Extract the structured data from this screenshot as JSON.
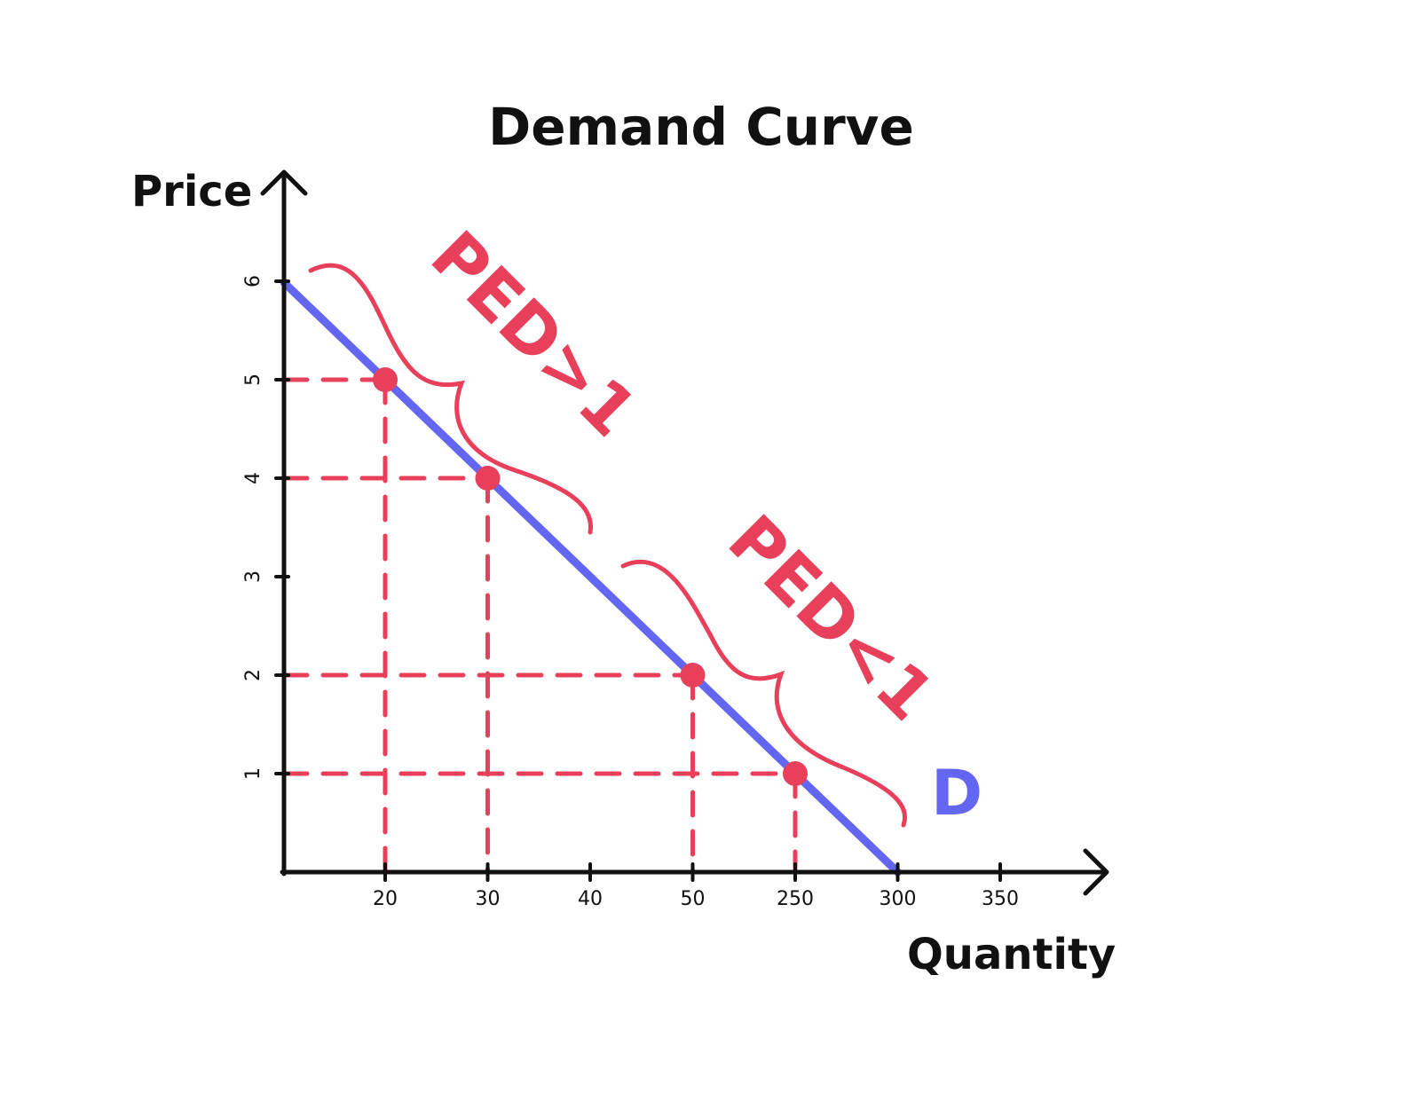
{
  "colors": {
    "demand": "#6366f1",
    "guides": "#e83f5b",
    "axis": "#111111",
    "text": "#111111"
  },
  "chart_data": {
    "type": "line",
    "title": "Demand Curve",
    "xlabel": "Quantity",
    "ylabel": "Price",
    "x_ticks": [
      "20",
      "30",
      "40",
      "50",
      "250",
      "300",
      "350"
    ],
    "y_ticks": [
      "1",
      "2",
      "3",
      "4",
      "5",
      "6"
    ],
    "x_axis_scale": "categorical (evenly spaced tick labels)",
    "series": [
      {
        "name": "D",
        "points": [
          {
            "x": "20",
            "y": 5
          },
          {
            "x": "30",
            "y": 4
          },
          {
            "x": "50",
            "y": 2
          },
          {
            "x": "250",
            "y": 1
          }
        ]
      }
    ],
    "highlighted_points": [
      {
        "x": "20",
        "y": 5
      },
      {
        "x": "30",
        "y": 4
      },
      {
        "x": "50",
        "y": 2
      },
      {
        "x": "250",
        "y": 1
      }
    ],
    "annotations": [
      {
        "text": "PED>1",
        "between": [
          "20",
          "30"
        ]
      },
      {
        "text": "PED<1",
        "between": [
          "50",
          "250"
        ]
      }
    ],
    "grid": false,
    "dashed_guides": true
  }
}
